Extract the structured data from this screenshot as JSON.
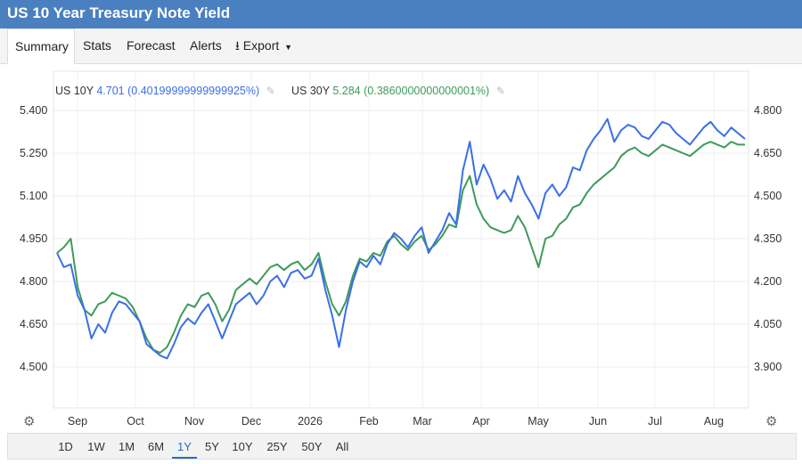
{
  "header": {
    "title": "US 10 Year Treasury Note Yield"
  },
  "tabs": [
    "Summary",
    "Stats",
    "Forecast",
    "Alerts",
    "Export"
  ],
  "legend": {
    "s1_name": "US 10Y",
    "s1_value": "4.701",
    "s1_change": "(0.40199999999999925%)",
    "s2_name": "US 30Y",
    "s2_value": "5.284",
    "s2_change": "(0.3860000000000001%)"
  },
  "ranges": [
    "1D",
    "1W",
    "1M",
    "6M",
    "1Y",
    "5Y",
    "10Y",
    "25Y",
    "50Y",
    "All"
  ],
  "active_range": "1Y",
  "colors": {
    "us10y": "#3a6fe6",
    "us30y": "#3f9a5b",
    "title_bar": "#4a80c0"
  },
  "chart_data": {
    "type": "line",
    "x_labels": [
      "Sep",
      "Oct",
      "Nov",
      "Dec",
      "2026",
      "Feb",
      "Mar",
      "Apr",
      "May",
      "Jun",
      "Jul",
      "Aug"
    ],
    "left_axis": {
      "ticks": [
        "5.400",
        "5.250",
        "5.100",
        "4.950",
        "4.800",
        "4.650",
        "4.500"
      ],
      "ylim": [
        4.35,
        5.45
      ]
    },
    "right_axis": {
      "ticks": [
        "4.800",
        "4.650",
        "4.500",
        "4.350",
        "4.200",
        "4.050",
        "3.900"
      ],
      "ylim": [
        3.75,
        4.85
      ]
    },
    "grid": true,
    "x_range": [
      0,
      100
    ],
    "series": [
      {
        "name": "US 10Y",
        "axis": "right",
        "x": [
          0,
          1,
          2,
          3,
          4,
          5,
          6,
          7,
          8,
          9,
          10,
          11,
          12,
          13,
          14,
          15,
          16,
          17,
          18,
          19,
          20,
          21,
          22,
          23,
          24,
          25,
          26,
          27,
          28,
          29,
          30,
          31,
          32,
          33,
          34,
          35,
          36,
          37,
          38,
          39,
          40,
          41,
          42,
          43,
          44,
          45,
          46,
          47,
          48,
          49,
          50,
          51,
          52,
          53,
          54,
          55,
          56,
          57,
          58,
          59,
          60,
          61,
          62,
          63,
          64,
          65,
          66,
          67,
          68,
          69,
          70,
          71,
          72,
          73,
          74,
          75,
          76,
          77,
          78,
          79,
          80,
          81,
          82,
          83,
          84,
          85,
          86,
          87,
          88,
          89,
          90,
          91,
          92,
          93,
          94,
          95,
          96,
          97,
          98,
          99,
          100
        ],
        "values": [
          4.3,
          4.25,
          4.26,
          4.15,
          4.1,
          4.0,
          4.05,
          4.02,
          4.09,
          4.13,
          4.12,
          4.09,
          4.06,
          3.98,
          3.96,
          3.94,
          3.93,
          3.98,
          4.04,
          4.07,
          4.05,
          4.09,
          4.12,
          4.06,
          4.0,
          4.06,
          4.12,
          4.14,
          4.16,
          4.12,
          4.15,
          4.2,
          4.22,
          4.18,
          4.23,
          4.24,
          4.21,
          4.22,
          4.28,
          4.17,
          4.08,
          3.97,
          4.1,
          4.2,
          4.27,
          4.25,
          4.29,
          4.26,
          4.33,
          4.37,
          4.35,
          4.32,
          4.36,
          4.39,
          4.3,
          4.34,
          4.38,
          4.44,
          4.4,
          4.59,
          4.69,
          4.54,
          4.61,
          4.56,
          4.49,
          4.52,
          4.48,
          4.57,
          4.51,
          4.47,
          4.42,
          4.51,
          4.54,
          4.5,
          4.53,
          4.6,
          4.59,
          4.66,
          4.7,
          4.73,
          4.77,
          4.69,
          4.73,
          4.75,
          4.74,
          4.71,
          4.7,
          4.73,
          4.76,
          4.75,
          4.72,
          4.7,
          4.68,
          4.71,
          4.74,
          4.76,
          4.73,
          4.71,
          4.74,
          4.72,
          4.7
        ]
      },
      {
        "name": "US 30Y",
        "axis": "left",
        "x": [
          0,
          1,
          2,
          3,
          4,
          5,
          6,
          7,
          8,
          9,
          10,
          11,
          12,
          13,
          14,
          15,
          16,
          17,
          18,
          19,
          20,
          21,
          22,
          23,
          24,
          25,
          26,
          27,
          28,
          29,
          30,
          31,
          32,
          33,
          34,
          35,
          36,
          37,
          38,
          39,
          40,
          41,
          42,
          43,
          44,
          45,
          46,
          47,
          48,
          49,
          50,
          51,
          52,
          53,
          54,
          55,
          56,
          57,
          58,
          59,
          60,
          61,
          62,
          63,
          64,
          65,
          66,
          67,
          68,
          69,
          70,
          71,
          72,
          73,
          74,
          75,
          76,
          77,
          78,
          79,
          80,
          81,
          82,
          83,
          84,
          85,
          86,
          87,
          88,
          89,
          90,
          91,
          92,
          93,
          94,
          95,
          96,
          97,
          98,
          99,
          100
        ],
        "values": [
          4.9,
          4.92,
          4.95,
          4.78,
          4.7,
          4.68,
          4.72,
          4.73,
          4.76,
          4.75,
          4.74,
          4.71,
          4.66,
          4.6,
          4.56,
          4.55,
          4.57,
          4.62,
          4.68,
          4.72,
          4.71,
          4.75,
          4.76,
          4.72,
          4.66,
          4.7,
          4.77,
          4.79,
          4.81,
          4.79,
          4.82,
          4.85,
          4.86,
          4.84,
          4.86,
          4.87,
          4.84,
          4.86,
          4.9,
          4.8,
          4.72,
          4.68,
          4.73,
          4.82,
          4.88,
          4.87,
          4.9,
          4.89,
          4.94,
          4.96,
          4.93,
          4.91,
          4.94,
          4.96,
          4.91,
          4.93,
          4.96,
          5.0,
          4.99,
          5.12,
          5.17,
          5.07,
          5.02,
          4.99,
          4.98,
          4.97,
          4.98,
          5.03,
          4.99,
          4.92,
          4.85,
          4.95,
          4.96,
          5.0,
          5.02,
          5.06,
          5.07,
          5.11,
          5.14,
          5.16,
          5.18,
          5.2,
          5.24,
          5.26,
          5.27,
          5.25,
          5.24,
          5.26,
          5.28,
          5.27,
          5.26,
          5.25,
          5.24,
          5.26,
          5.28,
          5.29,
          5.28,
          5.27,
          5.29,
          5.28,
          5.28
        ]
      }
    ]
  }
}
